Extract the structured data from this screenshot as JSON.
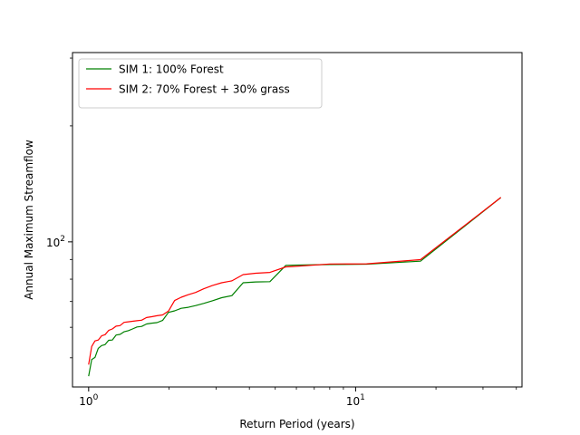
{
  "chart_data": {
    "type": "line",
    "xscale": "log",
    "yscale": "log",
    "xlabel": "Return Period (years)",
    "ylabel": "Annual Maximum Streamflow",
    "xlim": [
      0.87,
      42
    ],
    "ylim": [
      42,
      310
    ],
    "x_ticks": [
      {
        "value": 1,
        "label": "10^0"
      },
      {
        "value": 10,
        "label": "10^1"
      }
    ],
    "y_ticks": [
      {
        "value": 100,
        "label": "10^2"
      }
    ],
    "legend_position": "top-left",
    "grid": false,
    "series": [
      {
        "name": "SIM 1: 100% Forest",
        "color": "#008000",
        "x": [
          1.0,
          1.027,
          1.056,
          1.086,
          1.118,
          1.152,
          1.188,
          1.226,
          1.267,
          1.31,
          1.357,
          1.407,
          1.46,
          1.518,
          1.58,
          1.648,
          1.722,
          1.803,
          1.892,
          1.99,
          2.1,
          2.222,
          2.36,
          2.517,
          2.697,
          2.905,
          3.15,
          3.441,
          3.792,
          4.226,
          4.775,
          5.48,
          5.8,
          8.0,
          11.0,
          17.5,
          35.0
        ],
        "y": [
          44.8,
          49.5,
          50.1,
          52.9,
          53.8,
          54.1,
          55.5,
          55.6,
          57.3,
          57.5,
          58.4,
          58.8,
          59.4,
          60.1,
          60.3,
          61.2,
          61.5,
          61.7,
          62.5,
          65.6,
          66.2,
          67.2,
          67.6,
          68.3,
          69.2,
          70.3,
          71.6,
          72.5,
          78.3,
          78.7,
          78.8,
          86.9,
          87.0,
          87.3,
          87.5,
          89.1,
          130.4
        ]
      },
      {
        "name": "SIM 2: 70% Forest + 30% grass",
        "color": "#ff0000",
        "x": [
          1.0,
          1.027,
          1.056,
          1.086,
          1.118,
          1.152,
          1.188,
          1.226,
          1.267,
          1.31,
          1.357,
          1.407,
          1.46,
          1.518,
          1.58,
          1.648,
          1.722,
          1.803,
          1.892,
          1.99,
          2.1,
          2.222,
          2.36,
          2.517,
          2.697,
          2.905,
          3.15,
          3.441,
          3.792,
          4.226,
          4.775,
          5.48,
          5.8,
          8.0,
          11.0,
          17.5,
          35.0
        ],
        "y": [
          48.0,
          53.5,
          55.3,
          55.6,
          57.0,
          57.4,
          58.9,
          59.4,
          60.4,
          60.6,
          61.8,
          62.0,
          62.2,
          62.4,
          62.6,
          63.6,
          63.9,
          64.3,
          64.6,
          66.1,
          70.4,
          71.8,
          72.9,
          73.9,
          75.5,
          77.0,
          78.3,
          79.2,
          82.2,
          82.9,
          83.3,
          86.1,
          86.3,
          87.6,
          87.7,
          89.9,
          130.4
        ]
      }
    ]
  }
}
